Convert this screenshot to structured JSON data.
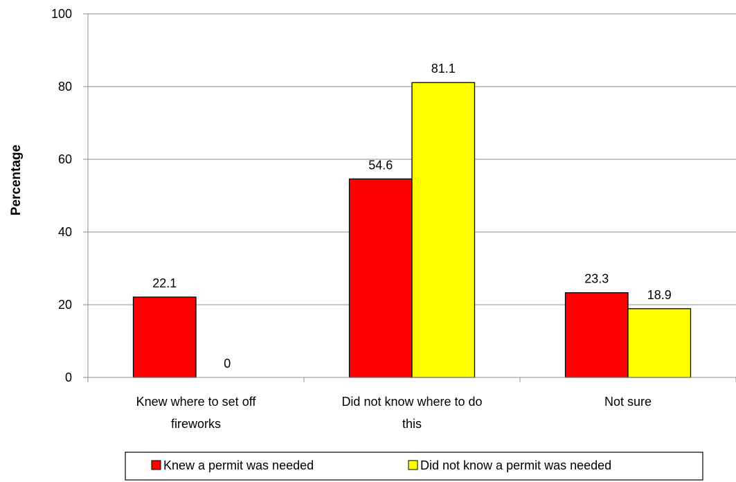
{
  "chart_data": {
    "type": "bar",
    "categories": [
      [
        "Knew where to set off",
        "fireworks"
      ],
      [
        "Did not know where to do",
        "this"
      ],
      [
        "Not sure"
      ]
    ],
    "series": [
      {
        "name": "Knew a permit was needed",
        "values": [
          22.1,
          54.6,
          23.3
        ],
        "labels": [
          "22.1",
          "54.6",
          "23.3"
        ],
        "color": "#FF0000"
      },
      {
        "name": "Did not know a permit was needed",
        "values": [
          0,
          81.1,
          18.9
        ],
        "labels": [
          "0",
          "81.1",
          "18.9"
        ],
        "color": "#FFFF00"
      }
    ],
    "ylabel": "Percentage",
    "ylim": [
      0,
      100
    ],
    "yticks": [
      "0",
      "20",
      "40",
      "60",
      "80",
      "100"
    ],
    "grid": true,
    "legend_position": "bottom"
  }
}
